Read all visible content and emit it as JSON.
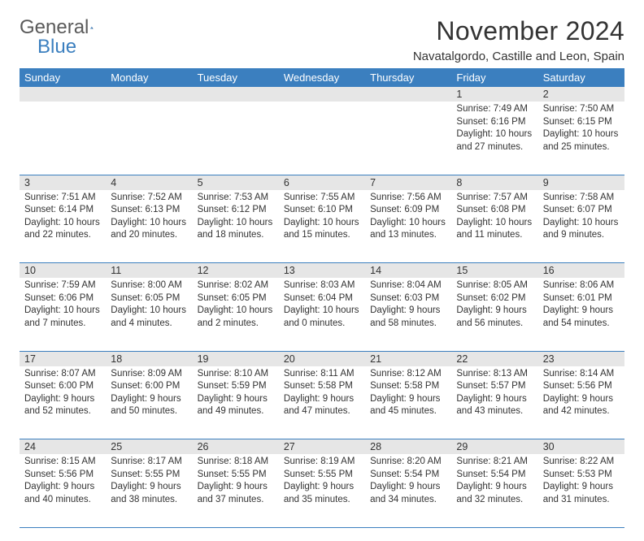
{
  "brand": {
    "name1": "General",
    "name2": "Blue"
  },
  "title": "November 2024",
  "location": "Navatalgordo, Castille and Leon, Spain",
  "colors": {
    "header_bg": "#3b7fbf",
    "header_text": "#ffffff",
    "daynum_bg": "#e6e6e6",
    "row_border": "#3b7fbf",
    "text": "#333333",
    "background": "#ffffff"
  },
  "weekdays": [
    "Sunday",
    "Monday",
    "Tuesday",
    "Wednesday",
    "Thursday",
    "Friday",
    "Saturday"
  ],
  "weeks": [
    [
      {
        "day": "",
        "sunrise": "",
        "sunset": "",
        "daylight": ""
      },
      {
        "day": "",
        "sunrise": "",
        "sunset": "",
        "daylight": ""
      },
      {
        "day": "",
        "sunrise": "",
        "sunset": "",
        "daylight": ""
      },
      {
        "day": "",
        "sunrise": "",
        "sunset": "",
        "daylight": ""
      },
      {
        "day": "",
        "sunrise": "",
        "sunset": "",
        "daylight": ""
      },
      {
        "day": "1",
        "sunrise": "Sunrise: 7:49 AM",
        "sunset": "Sunset: 6:16 PM",
        "daylight": "Daylight: 10 hours and 27 minutes."
      },
      {
        "day": "2",
        "sunrise": "Sunrise: 7:50 AM",
        "sunset": "Sunset: 6:15 PM",
        "daylight": "Daylight: 10 hours and 25 minutes."
      }
    ],
    [
      {
        "day": "3",
        "sunrise": "Sunrise: 7:51 AM",
        "sunset": "Sunset: 6:14 PM",
        "daylight": "Daylight: 10 hours and 22 minutes."
      },
      {
        "day": "4",
        "sunrise": "Sunrise: 7:52 AM",
        "sunset": "Sunset: 6:13 PM",
        "daylight": "Daylight: 10 hours and 20 minutes."
      },
      {
        "day": "5",
        "sunrise": "Sunrise: 7:53 AM",
        "sunset": "Sunset: 6:12 PM",
        "daylight": "Daylight: 10 hours and 18 minutes."
      },
      {
        "day": "6",
        "sunrise": "Sunrise: 7:55 AM",
        "sunset": "Sunset: 6:10 PM",
        "daylight": "Daylight: 10 hours and 15 minutes."
      },
      {
        "day": "7",
        "sunrise": "Sunrise: 7:56 AM",
        "sunset": "Sunset: 6:09 PM",
        "daylight": "Daylight: 10 hours and 13 minutes."
      },
      {
        "day": "8",
        "sunrise": "Sunrise: 7:57 AM",
        "sunset": "Sunset: 6:08 PM",
        "daylight": "Daylight: 10 hours and 11 minutes."
      },
      {
        "day": "9",
        "sunrise": "Sunrise: 7:58 AM",
        "sunset": "Sunset: 6:07 PM",
        "daylight": "Daylight: 10 hours and 9 minutes."
      }
    ],
    [
      {
        "day": "10",
        "sunrise": "Sunrise: 7:59 AM",
        "sunset": "Sunset: 6:06 PM",
        "daylight": "Daylight: 10 hours and 7 minutes."
      },
      {
        "day": "11",
        "sunrise": "Sunrise: 8:00 AM",
        "sunset": "Sunset: 6:05 PM",
        "daylight": "Daylight: 10 hours and 4 minutes."
      },
      {
        "day": "12",
        "sunrise": "Sunrise: 8:02 AM",
        "sunset": "Sunset: 6:05 PM",
        "daylight": "Daylight: 10 hours and 2 minutes."
      },
      {
        "day": "13",
        "sunrise": "Sunrise: 8:03 AM",
        "sunset": "Sunset: 6:04 PM",
        "daylight": "Daylight: 10 hours and 0 minutes."
      },
      {
        "day": "14",
        "sunrise": "Sunrise: 8:04 AM",
        "sunset": "Sunset: 6:03 PM",
        "daylight": "Daylight: 9 hours and 58 minutes."
      },
      {
        "day": "15",
        "sunrise": "Sunrise: 8:05 AM",
        "sunset": "Sunset: 6:02 PM",
        "daylight": "Daylight: 9 hours and 56 minutes."
      },
      {
        "day": "16",
        "sunrise": "Sunrise: 8:06 AM",
        "sunset": "Sunset: 6:01 PM",
        "daylight": "Daylight: 9 hours and 54 minutes."
      }
    ],
    [
      {
        "day": "17",
        "sunrise": "Sunrise: 8:07 AM",
        "sunset": "Sunset: 6:00 PM",
        "daylight": "Daylight: 9 hours and 52 minutes."
      },
      {
        "day": "18",
        "sunrise": "Sunrise: 8:09 AM",
        "sunset": "Sunset: 6:00 PM",
        "daylight": "Daylight: 9 hours and 50 minutes."
      },
      {
        "day": "19",
        "sunrise": "Sunrise: 8:10 AM",
        "sunset": "Sunset: 5:59 PM",
        "daylight": "Daylight: 9 hours and 49 minutes."
      },
      {
        "day": "20",
        "sunrise": "Sunrise: 8:11 AM",
        "sunset": "Sunset: 5:58 PM",
        "daylight": "Daylight: 9 hours and 47 minutes."
      },
      {
        "day": "21",
        "sunrise": "Sunrise: 8:12 AM",
        "sunset": "Sunset: 5:58 PM",
        "daylight": "Daylight: 9 hours and 45 minutes."
      },
      {
        "day": "22",
        "sunrise": "Sunrise: 8:13 AM",
        "sunset": "Sunset: 5:57 PM",
        "daylight": "Daylight: 9 hours and 43 minutes."
      },
      {
        "day": "23",
        "sunrise": "Sunrise: 8:14 AM",
        "sunset": "Sunset: 5:56 PM",
        "daylight": "Daylight: 9 hours and 42 minutes."
      }
    ],
    [
      {
        "day": "24",
        "sunrise": "Sunrise: 8:15 AM",
        "sunset": "Sunset: 5:56 PM",
        "daylight": "Daylight: 9 hours and 40 minutes."
      },
      {
        "day": "25",
        "sunrise": "Sunrise: 8:17 AM",
        "sunset": "Sunset: 5:55 PM",
        "daylight": "Daylight: 9 hours and 38 minutes."
      },
      {
        "day": "26",
        "sunrise": "Sunrise: 8:18 AM",
        "sunset": "Sunset: 5:55 PM",
        "daylight": "Daylight: 9 hours and 37 minutes."
      },
      {
        "day": "27",
        "sunrise": "Sunrise: 8:19 AM",
        "sunset": "Sunset: 5:55 PM",
        "daylight": "Daylight: 9 hours and 35 minutes."
      },
      {
        "day": "28",
        "sunrise": "Sunrise: 8:20 AM",
        "sunset": "Sunset: 5:54 PM",
        "daylight": "Daylight: 9 hours and 34 minutes."
      },
      {
        "day": "29",
        "sunrise": "Sunrise: 8:21 AM",
        "sunset": "Sunset: 5:54 PM",
        "daylight": "Daylight: 9 hours and 32 minutes."
      },
      {
        "day": "30",
        "sunrise": "Sunrise: 8:22 AM",
        "sunset": "Sunset: 5:53 PM",
        "daylight": "Daylight: 9 hours and 31 minutes."
      }
    ]
  ]
}
